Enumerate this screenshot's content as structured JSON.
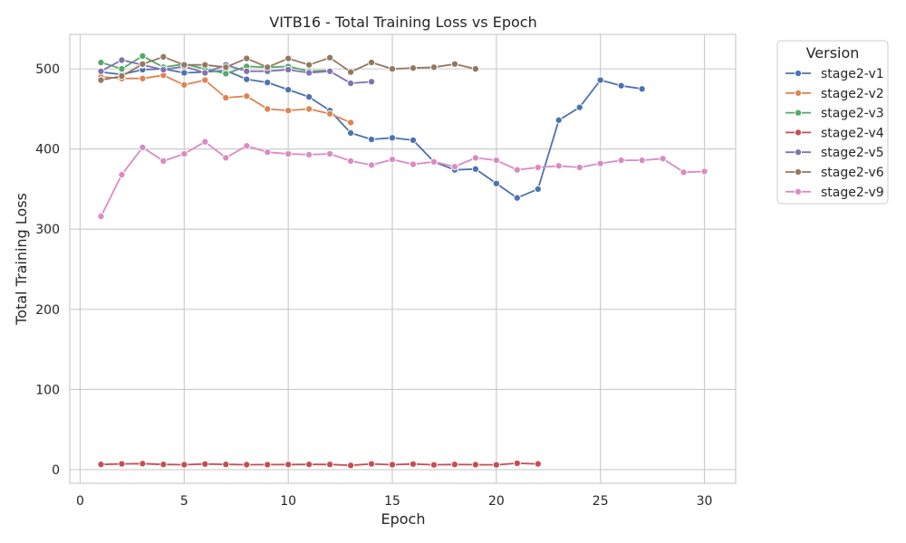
{
  "chart_data": {
    "type": "line",
    "title": "VITB16 - Total Training Loss vs Epoch",
    "xlabel": "Epoch",
    "ylabel": "Total Training Loss",
    "xlim": [
      -0.5,
      31.5
    ],
    "ylim": [
      -17,
      543
    ],
    "xticks": [
      0,
      5,
      10,
      15,
      20,
      25,
      30
    ],
    "yticks": [
      0,
      100,
      200,
      300,
      400,
      500
    ],
    "grid": true,
    "legend": {
      "title": "Version",
      "placement": "outside-top-right"
    },
    "series": [
      {
        "name": "stage2-v1",
        "color": "#4c72b0",
        "x": [
          1,
          2,
          3,
          4,
          5,
          6,
          7,
          8,
          9,
          10,
          11,
          12,
          13,
          14,
          15,
          16,
          17,
          18,
          19,
          20,
          21,
          22,
          23,
          24,
          25,
          26,
          27
        ],
        "y": [
          496,
          493,
          499,
          500,
          495,
          496,
          498,
          487,
          483,
          474,
          465,
          448,
          420,
          412,
          414,
          411,
          384,
          374,
          375,
          357,
          339,
          350,
          436,
          452,
          486,
          479,
          475
        ]
      },
      {
        "name": "stage2-v2",
        "color": "#dd8452",
        "x": [
          1,
          2,
          3,
          4,
          5,
          6,
          7,
          8,
          9,
          10,
          11,
          12,
          13
        ],
        "y": [
          490,
          488,
          488,
          492,
          480,
          486,
          464,
          466,
          450,
          448,
          450,
          444,
          433
        ]
      },
      {
        "name": "stage2-v3",
        "color": "#55a868",
        "x": [
          1,
          2,
          3,
          4,
          5,
          6,
          7,
          8,
          9,
          10,
          11,
          12
        ],
        "y": [
          508,
          500,
          516,
          502,
          506,
          500,
          494,
          503,
          502,
          503,
          497,
          498
        ]
      },
      {
        "name": "stage2-v4",
        "color": "#c44e52",
        "x": [
          1,
          2,
          3,
          4,
          5,
          6,
          7,
          8,
          9,
          10,
          11,
          12,
          13,
          14,
          15,
          16,
          17,
          18,
          19,
          20,
          21,
          22
        ],
        "y": [
          6.5,
          7.2,
          7.5,
          6.5,
          6.2,
          7.0,
          6.6,
          6.2,
          6.3,
          6.4,
          6.5,
          6.5,
          5.3,
          7.2,
          6.2,
          7.0,
          6.0,
          6.5,
          6.2,
          6.0,
          8.0,
          7.2
        ]
      },
      {
        "name": "stage2-v5",
        "color": "#8172b3",
        "x": [
          1,
          2,
          3,
          4,
          5,
          6,
          7,
          8,
          9,
          10,
          11,
          12,
          13,
          14
        ],
        "y": [
          497,
          511,
          505,
          499,
          503,
          495,
          505,
          497,
          497,
          499,
          495,
          497,
          482,
          484
        ]
      },
      {
        "name": "stage2-v6",
        "color": "#937860",
        "x": [
          1,
          2,
          3,
          4,
          5,
          6,
          7,
          8,
          9,
          10,
          11,
          12,
          13,
          14,
          15,
          16,
          17,
          18,
          19
        ],
        "y": [
          486,
          491,
          506,
          515,
          505,
          505,
          502,
          513,
          502,
          513,
          505,
          514,
          496,
          508,
          500,
          501,
          502,
          506,
          500
        ]
      },
      {
        "name": "stage2-v9",
        "color": "#da8bc3",
        "x": [
          1,
          2,
          3,
          4,
          5,
          6,
          7,
          8,
          9,
          10,
          11,
          12,
          13,
          14,
          15,
          16,
          17,
          18,
          19,
          20,
          21,
          22,
          23,
          24,
          25,
          26,
          27,
          28,
          29,
          30
        ],
        "y": [
          316,
          368,
          402,
          385,
          394,
          409,
          389,
          404,
          396,
          394,
          393,
          394,
          385,
          380,
          387,
          381,
          384,
          378,
          389,
          386,
          374,
          377,
          379,
          377,
          382,
          386,
          386,
          388,
          371,
          372
        ]
      }
    ]
  }
}
